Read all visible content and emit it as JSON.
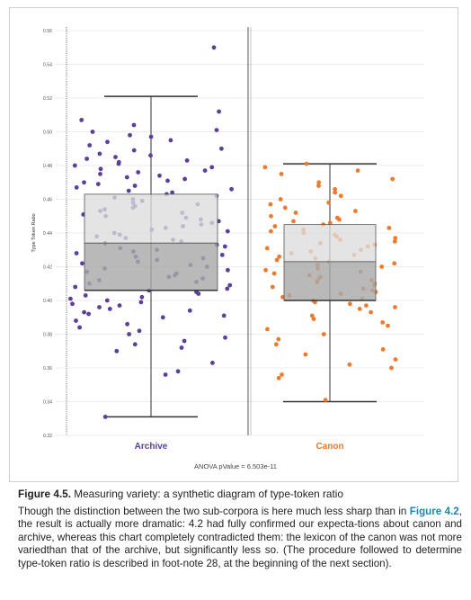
{
  "chart_data": {
    "type": "box-strip",
    "title": "",
    "xlabel": "",
    "ylabel": "Type Token Ratio",
    "ylim": [
      0.32,
      0.56
    ],
    "yticks": [
      "0.32",
      "0.34",
      "0.36",
      "0.38",
      "0.40",
      "0.42",
      "0.44",
      "0.46",
      "0.48",
      "0.50",
      "0.52",
      "0.54",
      "0.56"
    ],
    "grid": true,
    "categories": [
      "Archive",
      "Canon"
    ],
    "colors": {
      "Archive": "#5b3f9a",
      "Canon": "#ef7a2b",
      "box_upper": "#dcdcdc",
      "box_lower": "#a9a9a9",
      "whisker": "#333333"
    },
    "boxes": [
      {
        "name": "Archive",
        "min": 0.331,
        "q1": 0.406,
        "median": 0.434,
        "q3": 0.463,
        "max": 0.521
      },
      {
        "name": "Canon",
        "min": 0.34,
        "q1": 0.4,
        "median": 0.423,
        "q3": 0.445,
        "max": 0.481
      }
    ],
    "points": {
      "Archive": [
        0.55,
        0.512,
        0.507,
        0.504,
        0.501,
        0.5,
        0.498,
        0.497,
        0.495,
        0.494,
        0.492,
        0.49,
        0.489,
        0.487,
        0.486,
        0.485,
        0.484,
        0.483,
        0.482,
        0.481,
        0.48,
        0.479,
        0.478,
        0.477,
        0.476,
        0.475,
        0.474,
        0.473,
        0.472,
        0.471,
        0.47,
        0.469,
        0.468,
        0.467,
        0.466,
        0.465,
        0.464,
        0.463,
        0.462,
        0.461,
        0.46,
        0.459,
        0.458,
        0.457,
        0.456,
        0.455,
        0.454,
        0.453,
        0.452,
        0.451,
        0.45,
        0.449,
        0.448,
        0.447,
        0.446,
        0.445,
        0.444,
        0.443,
        0.442,
        0.441,
        0.44,
        0.439,
        0.438,
        0.437,
        0.436,
        0.435,
        0.434,
        0.433,
        0.432,
        0.431,
        0.43,
        0.429,
        0.428,
        0.427,
        0.426,
        0.425,
        0.424,
        0.423,
        0.422,
        0.421,
        0.42,
        0.419,
        0.418,
        0.417,
        0.416,
        0.415,
        0.414,
        0.413,
        0.412,
        0.411,
        0.41,
        0.409,
        0.408,
        0.407,
        0.406,
        0.405,
        0.404,
        0.403,
        0.402,
        0.401,
        0.4,
        0.399,
        0.398,
        0.397,
        0.396,
        0.395,
        0.394,
        0.393,
        0.392,
        0.391,
        0.39,
        0.388,
        0.386,
        0.384,
        0.382,
        0.38,
        0.378,
        0.376,
        0.374,
        0.372,
        0.37,
        0.363,
        0.358,
        0.356,
        0.331
      ],
      "Canon": [
        0.481,
        0.479,
        0.477,
        0.475,
        0.472,
        0.47,
        0.468,
        0.466,
        0.464,
        0.462,
        0.46,
        0.458,
        0.457,
        0.455,
        0.453,
        0.452,
        0.45,
        0.449,
        0.448,
        0.447,
        0.446,
        0.445,
        0.444,
        0.443,
        0.442,
        0.441,
        0.44,
        0.439,
        0.438,
        0.437,
        0.436,
        0.435,
        0.434,
        0.433,
        0.432,
        0.431,
        0.43,
        0.429,
        0.428,
        0.427,
        0.426,
        0.425,
        0.424,
        0.423,
        0.422,
        0.421,
        0.42,
        0.419,
        0.418,
        0.417,
        0.416,
        0.415,
        0.414,
        0.413,
        0.412,
        0.411,
        0.41,
        0.409,
        0.408,
        0.407,
        0.406,
        0.405,
        0.404,
        0.403,
        0.402,
        0.401,
        0.4,
        0.399,
        0.398,
        0.397,
        0.396,
        0.395,
        0.393,
        0.391,
        0.389,
        0.387,
        0.385,
        0.383,
        0.38,
        0.377,
        0.374,
        0.371,
        0.368,
        0.365,
        0.362,
        0.36,
        0.356,
        0.354,
        0.341
      ]
    }
  },
  "annotation": "ANOVA pValue = 6.503e-11",
  "caption": {
    "figure_label": "Figure 4.5.",
    "figure_title": " Measuring variety: a synthetic diagram of type-token ratio",
    "body_1": "Though the distinction between the two sub-corpora is here much less sharp than in ",
    "figure_ref": "Figure 4.2",
    "body_2": ", the result is actually more dramatic: 4.2 had fully confirmed our expecta-tions about canon and archive, whereas this chart completely contradicted them: the lexicon of the canon was not more variedthan that of the archive, but significantly less so. (The procedure followed to determine type-token ratio is described in foot-note 28, at the beginning of the next section)."
  }
}
